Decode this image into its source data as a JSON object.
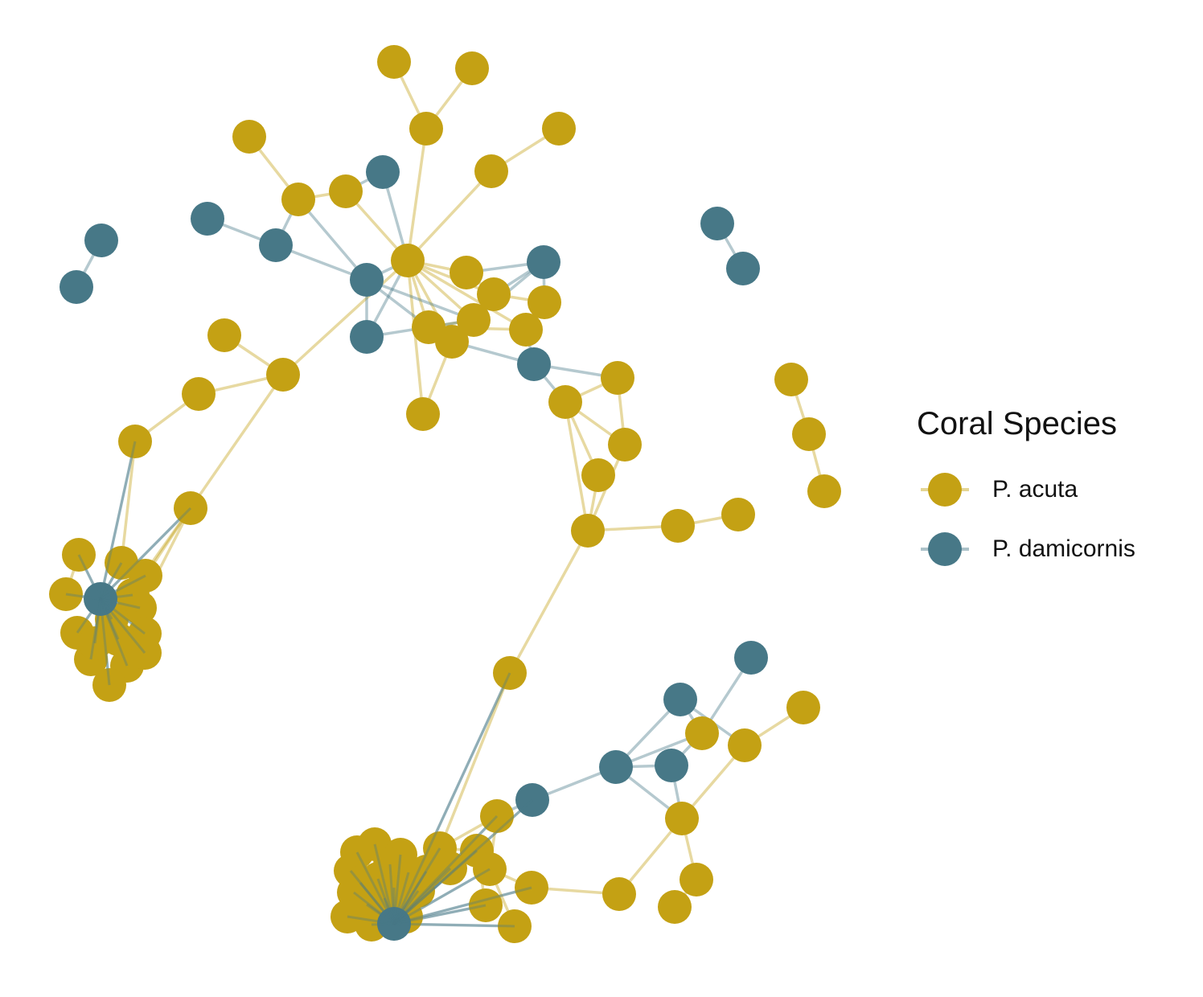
{
  "legend": {
    "title": "Coral Species",
    "items": [
      {
        "label": "P. acuta",
        "color": "#C4A114"
      },
      {
        "label": "P. damicornis",
        "color": "#477887"
      }
    ]
  },
  "colors": {
    "acuta": "#C4A114",
    "damicornis": "#477887"
  }
}
